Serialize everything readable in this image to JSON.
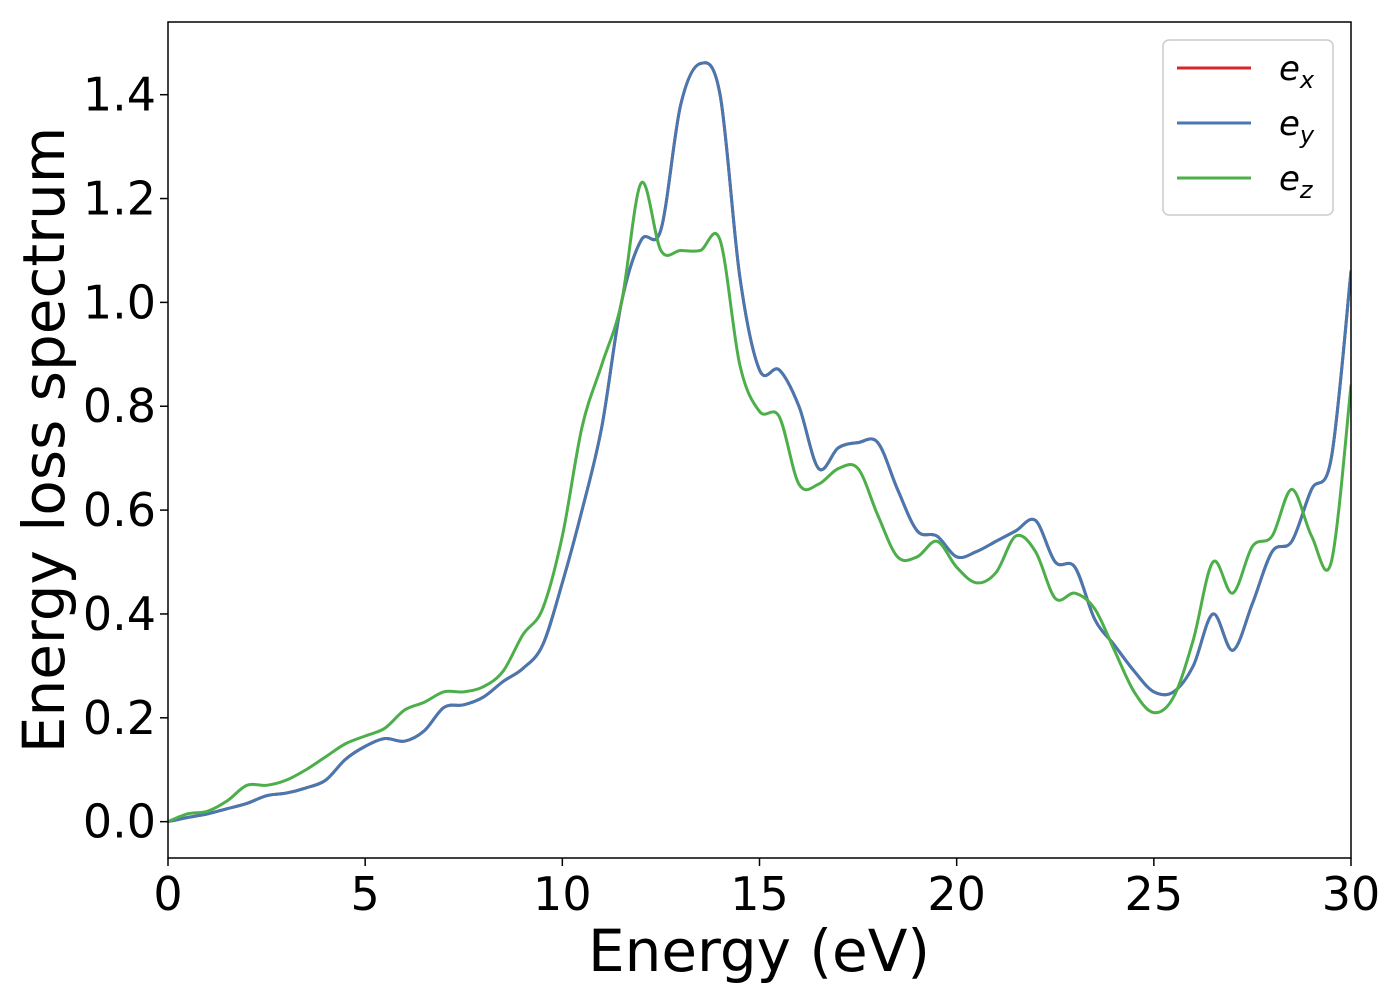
{
  "chart_data": {
    "type": "line",
    "title": "",
    "xlabel": "Energy (eV)",
    "ylabel": "Energy loss spectrum",
    "xlim": [
      0,
      30
    ],
    "ylim": [
      -0.07,
      1.54
    ],
    "xticks": [
      0,
      5,
      10,
      15,
      20,
      25,
      30
    ],
    "xtick_labels": [
      "0",
      "5",
      "10",
      "15",
      "20",
      "25",
      "30"
    ],
    "yticks": [
      0.0,
      0.2,
      0.4,
      0.6,
      0.8,
      1.0,
      1.2,
      1.4
    ],
    "ytick_labels": [
      "0.0",
      "0.2",
      "0.4",
      "0.6",
      "0.8",
      "1.0",
      "1.2",
      "1.4"
    ],
    "grid": false,
    "legend_position": "top-right",
    "series": [
      {
        "name": "e_x",
        "label_base": "e",
        "label_sub": "x",
        "color": "#d62728",
        "x": [
          0,
          0.5,
          1,
          1.5,
          2,
          2.5,
          3,
          3.5,
          4,
          4.5,
          5,
          5.5,
          6,
          6.5,
          7,
          7.5,
          8,
          8.5,
          9,
          9.5,
          10,
          10.5,
          11,
          11.5,
          12,
          12.5,
          13,
          13.5,
          14,
          14.5,
          15,
          15.5,
          16,
          16.5,
          17,
          17.5,
          18,
          18.5,
          19,
          19.5,
          20,
          20.5,
          21,
          21.5,
          22,
          22.5,
          23,
          23.5,
          24,
          24.5,
          25,
          25.5,
          26,
          26.5,
          27,
          27.5,
          28,
          28.5,
          29,
          29.5,
          30
        ],
        "y": [
          0.0,
          0.008,
          0.015,
          0.025,
          0.035,
          0.05,
          0.055,
          0.065,
          0.08,
          0.12,
          0.145,
          0.16,
          0.155,
          0.175,
          0.22,
          0.225,
          0.24,
          0.27,
          0.295,
          0.34,
          0.46,
          0.6,
          0.76,
          1.0,
          1.12,
          1.14,
          1.38,
          1.46,
          1.4,
          1.05,
          0.87,
          0.87,
          0.8,
          0.68,
          0.72,
          0.73,
          0.73,
          0.64,
          0.56,
          0.55,
          0.51,
          0.52,
          0.54,
          0.56,
          0.58,
          0.5,
          0.49,
          0.39,
          0.34,
          0.29,
          0.25,
          0.25,
          0.3,
          0.4,
          0.33,
          0.42,
          0.52,
          0.54,
          0.64,
          0.7,
          1.06
        ]
      },
      {
        "name": "e_y",
        "label_base": "e",
        "label_sub": "y",
        "color": "#4878b0",
        "x": [
          0,
          0.5,
          1,
          1.5,
          2,
          2.5,
          3,
          3.5,
          4,
          4.5,
          5,
          5.5,
          6,
          6.5,
          7,
          7.5,
          8,
          8.5,
          9,
          9.5,
          10,
          10.5,
          11,
          11.5,
          12,
          12.5,
          13,
          13.5,
          14,
          14.5,
          15,
          15.5,
          16,
          16.5,
          17,
          17.5,
          18,
          18.5,
          19,
          19.5,
          20,
          20.5,
          21,
          21.5,
          22,
          22.5,
          23,
          23.5,
          24,
          24.5,
          25,
          25.5,
          26,
          26.5,
          27,
          27.5,
          28,
          28.5,
          29,
          29.5,
          30
        ],
        "y": [
          0.0,
          0.008,
          0.015,
          0.025,
          0.035,
          0.05,
          0.055,
          0.065,
          0.08,
          0.12,
          0.145,
          0.16,
          0.155,
          0.175,
          0.22,
          0.225,
          0.24,
          0.27,
          0.295,
          0.34,
          0.46,
          0.6,
          0.76,
          1.0,
          1.12,
          1.14,
          1.38,
          1.46,
          1.4,
          1.05,
          0.87,
          0.87,
          0.8,
          0.68,
          0.72,
          0.73,
          0.73,
          0.64,
          0.56,
          0.55,
          0.51,
          0.52,
          0.54,
          0.56,
          0.58,
          0.5,
          0.49,
          0.39,
          0.34,
          0.29,
          0.25,
          0.25,
          0.3,
          0.4,
          0.33,
          0.42,
          0.52,
          0.54,
          0.64,
          0.7,
          1.06
        ]
      },
      {
        "name": "e_z",
        "label_base": "e",
        "label_sub": "z",
        "color": "#4daf4a",
        "x": [
          0,
          0.5,
          1,
          1.5,
          2,
          2.5,
          3,
          3.5,
          4,
          4.5,
          5,
          5.5,
          6,
          6.5,
          7,
          7.5,
          8,
          8.5,
          9,
          9.5,
          10,
          10.5,
          11,
          11.5,
          12,
          12.5,
          13,
          13.5,
          14,
          14.5,
          15,
          15.5,
          16,
          16.5,
          17,
          17.5,
          18,
          18.5,
          19,
          19.5,
          20,
          20.5,
          21,
          21.5,
          22,
          22.5,
          23,
          23.5,
          24,
          24.5,
          25,
          25.5,
          26,
          26.5,
          27,
          27.5,
          28,
          28.5,
          29,
          29.5,
          30
        ],
        "y": [
          0.0,
          0.015,
          0.02,
          0.04,
          0.07,
          0.07,
          0.08,
          0.1,
          0.125,
          0.15,
          0.165,
          0.18,
          0.215,
          0.23,
          0.25,
          0.25,
          0.26,
          0.29,
          0.36,
          0.41,
          0.55,
          0.76,
          0.88,
          1.0,
          1.23,
          1.1,
          1.1,
          1.1,
          1.12,
          0.88,
          0.79,
          0.78,
          0.65,
          0.65,
          0.68,
          0.68,
          0.59,
          0.51,
          0.51,
          0.54,
          0.49,
          0.46,
          0.48,
          0.55,
          0.52,
          0.43,
          0.44,
          0.41,
          0.33,
          0.25,
          0.21,
          0.24,
          0.35,
          0.5,
          0.44,
          0.53,
          0.55,
          0.64,
          0.55,
          0.5,
          0.84
        ]
      }
    ]
  }
}
